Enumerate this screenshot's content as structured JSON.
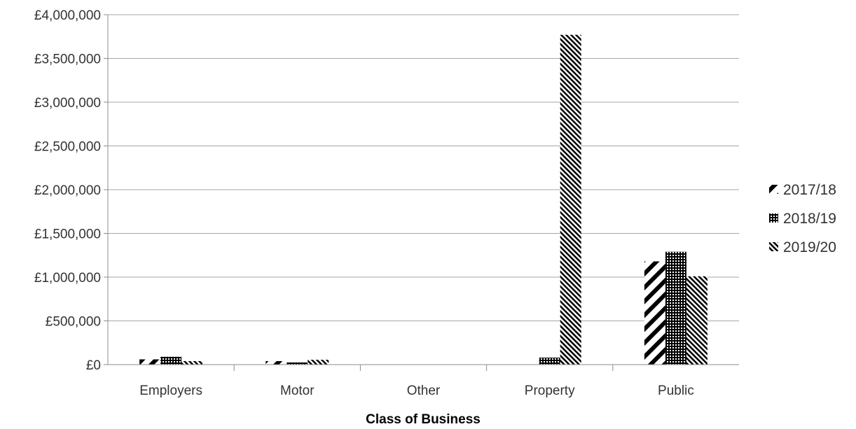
{
  "chart_data": {
    "type": "bar",
    "categories": [
      "Employers",
      "Motor",
      "Other",
      "Property",
      "Public"
    ],
    "series": [
      {
        "name": "2017/18",
        "pattern": "diagonal-wide",
        "values": [
          60000,
          40000,
          0,
          0,
          1180000
        ]
      },
      {
        "name": "2018/19",
        "pattern": "checker",
        "values": [
          90000,
          25000,
          0,
          80000,
          1290000
        ]
      },
      {
        "name": "2019/20",
        "pattern": "diagonal-dense",
        "values": [
          40000,
          55000,
          0,
          3770000,
          1010000
        ]
      }
    ],
    "xlabel": "Class of Business",
    "ylim": [
      0,
      4000000
    ],
    "yticks": [
      {
        "value": 0,
        "label": "£0"
      },
      {
        "value": 500000,
        "label": "£500,000"
      },
      {
        "value": 1000000,
        "label": "£1,000,000"
      },
      {
        "value": 1500000,
        "label": "£1,500,000"
      },
      {
        "value": 2000000,
        "label": "£2,000,000"
      },
      {
        "value": 2500000,
        "label": "£2,500,000"
      },
      {
        "value": 3000000,
        "label": "£3,000,000"
      },
      {
        "value": 3500000,
        "label": "£3,500,000"
      },
      {
        "value": 4000000,
        "label": "£4,000,000"
      }
    ],
    "grid": true,
    "legend_position": "right",
    "colors": {
      "bar": "#000000",
      "grid": "#a6a6a6",
      "axis": "#8c8c8c",
      "text": "#333333"
    }
  }
}
